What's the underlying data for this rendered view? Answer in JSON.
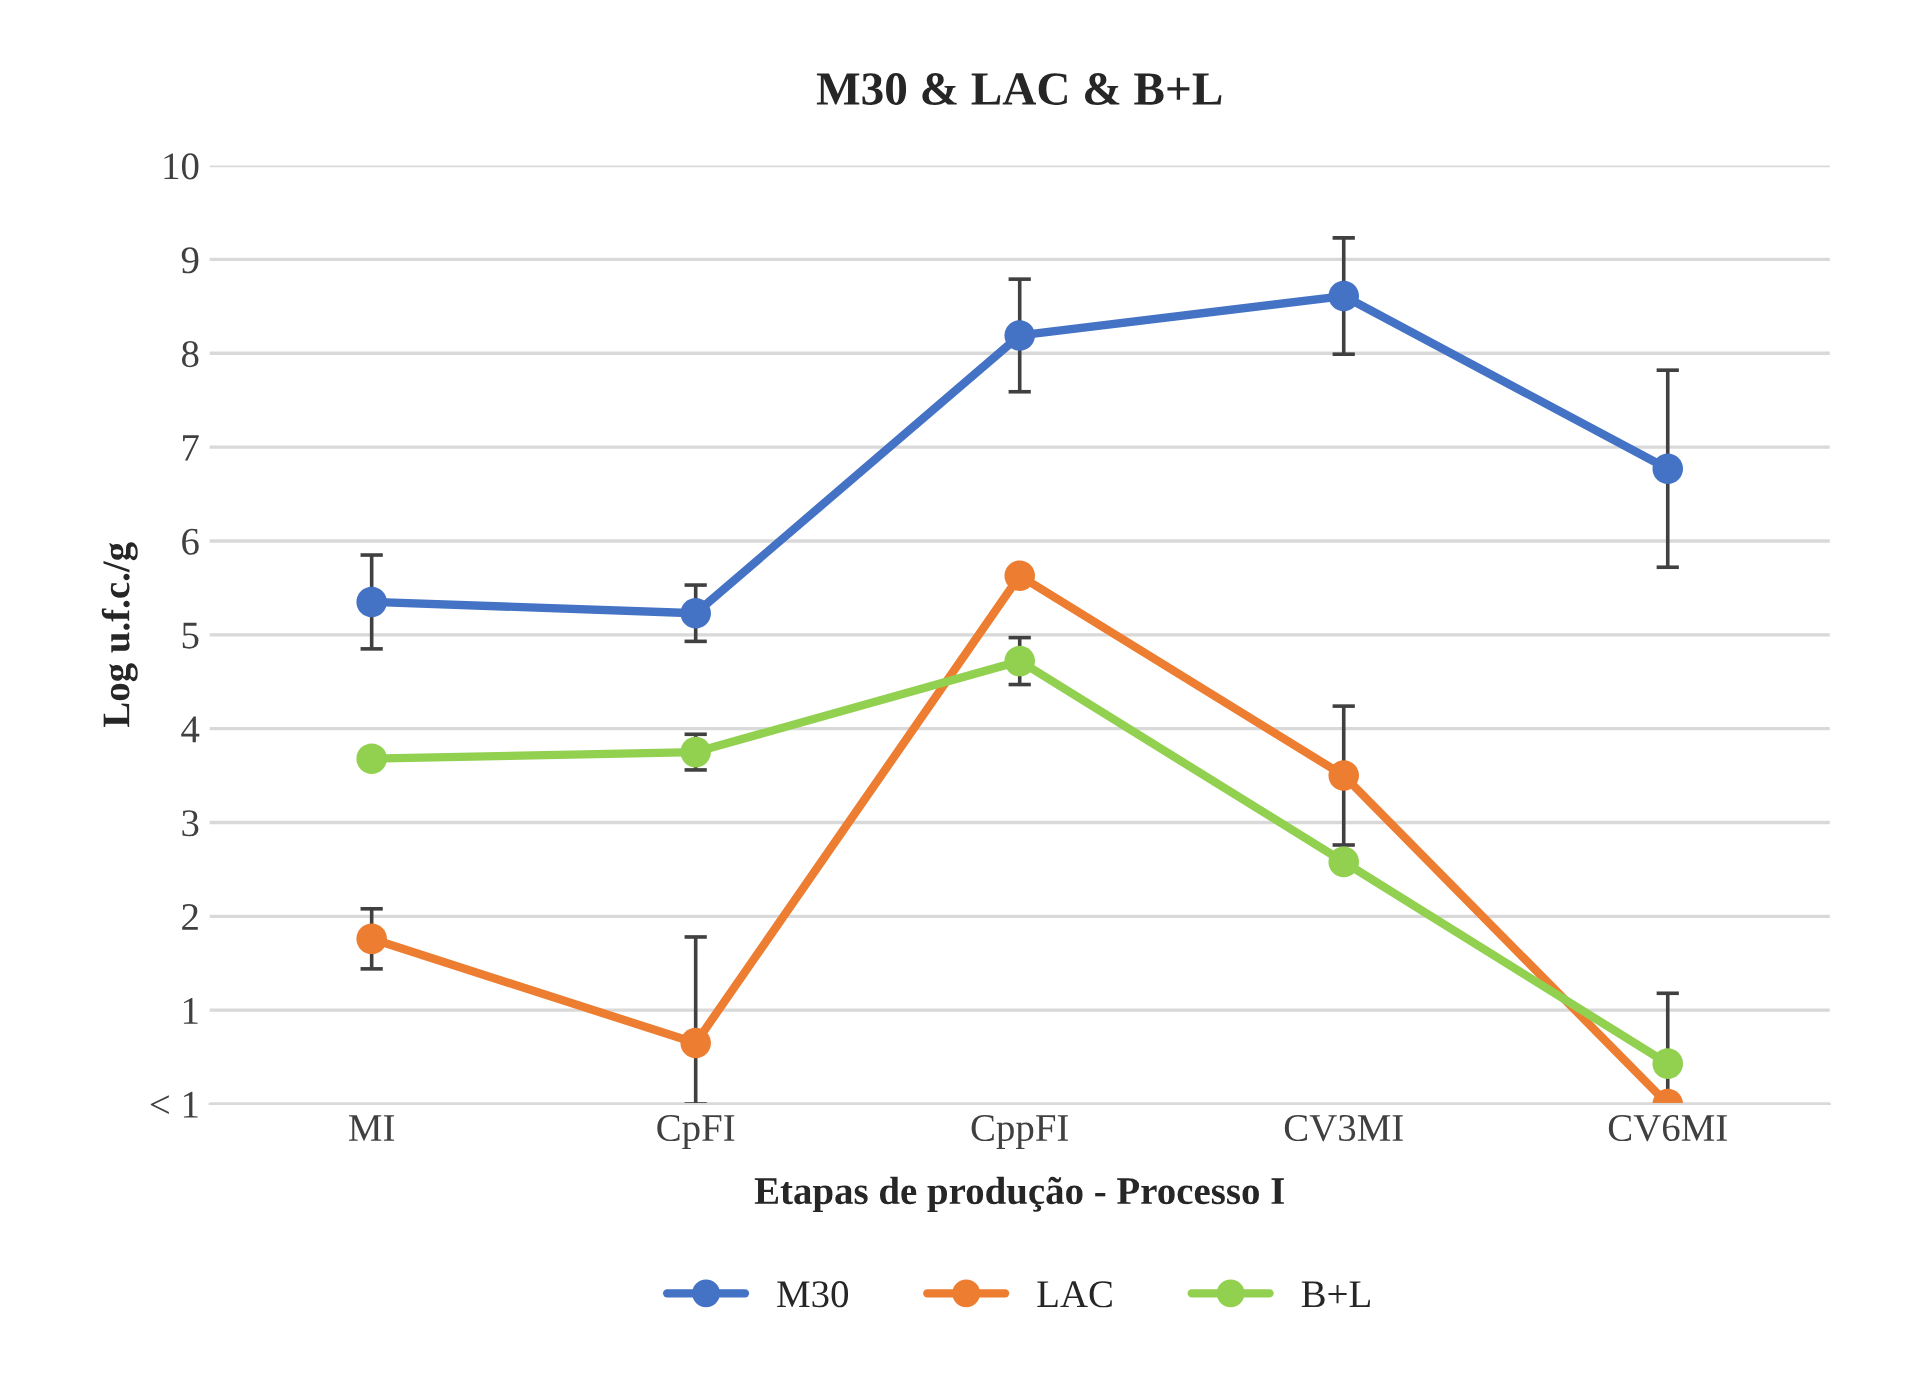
{
  "chart_data": {
    "type": "line",
    "title": "M30 & LAC & B+L",
    "xlabel": "Etapas de produção - Processo I",
    "ylabel": "Log u.f.c./g",
    "categories": [
      "MI",
      "CpFI",
      "CppFI",
      "CV3MI",
      "CV6MI"
    ],
    "series": [
      {
        "name": "M30",
        "color": "#4472c4",
        "values": [
          5.35,
          5.23,
          8.19,
          8.61,
          6.77
        ],
        "errors": [
          0.5,
          0.3,
          0.6,
          0.62,
          1.05
        ]
      },
      {
        "name": "LAC",
        "color": "#ed7d31",
        "values": [
          1.76,
          0.65,
          5.63,
          3.5,
          0
        ],
        "errors": [
          0.32,
          [
            0,
            1.78
          ],
          null,
          0.74,
          null
        ]
      },
      {
        "name": "B+L",
        "color": "#92d050",
        "values": [
          3.68,
          3.75,
          4.72,
          2.58,
          0.43
        ],
        "errors": [
          null,
          0.19,
          0.25,
          null,
          0.75
        ]
      }
    ],
    "ylim": [
      0,
      10
    ],
    "yticks": [
      {
        "value": 0,
        "label": "< 1"
      },
      1,
      2,
      3,
      4,
      5,
      6,
      7,
      8,
      9,
      10
    ],
    "grid": "y",
    "legend": "bottom",
    "marker": "circle",
    "line_style": "solid"
  }
}
